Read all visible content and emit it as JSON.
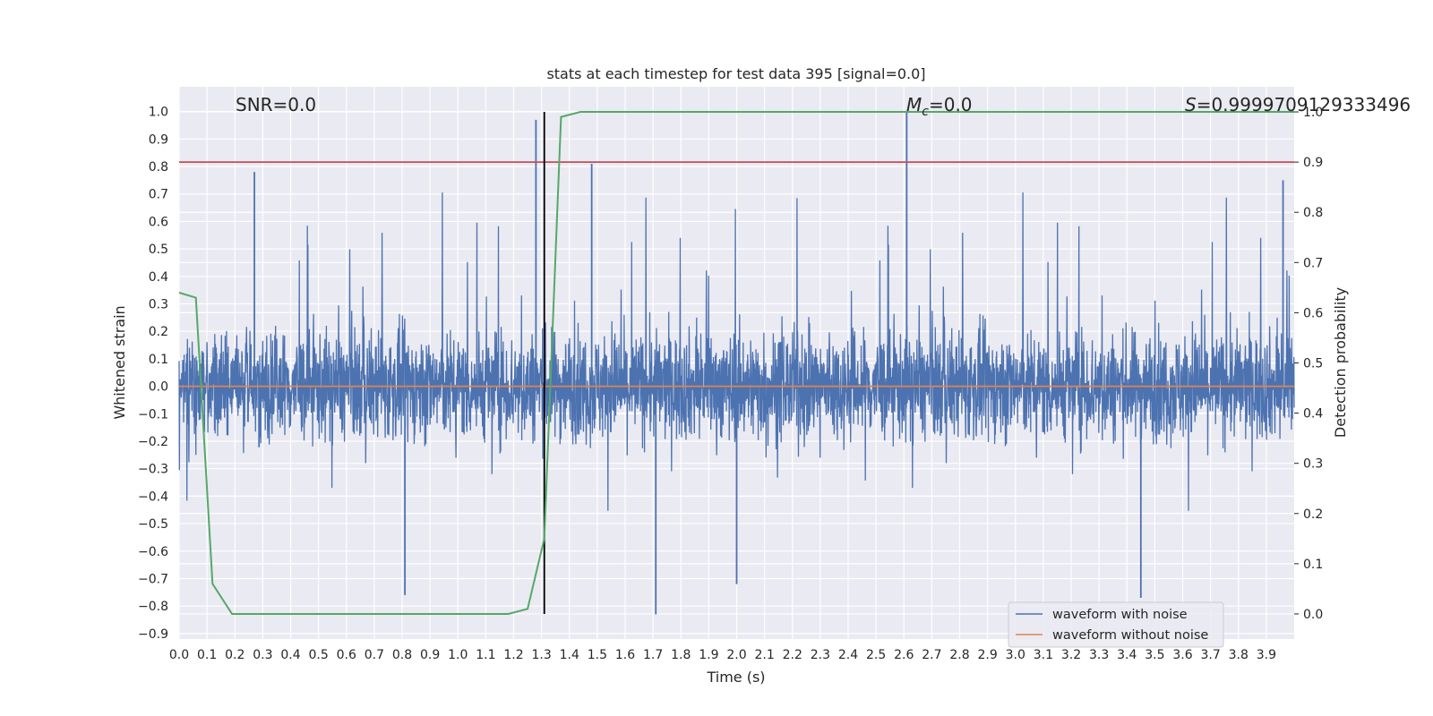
{
  "chart_data": {
    "type": "line",
    "title": "stats at each timestep for test data 395 [signal=0.0]",
    "xlabel": "Time (s)",
    "ylabel": "Whitened strain",
    "y2label": "Detection probability",
    "xlim": [
      0.0,
      4.0
    ],
    "ylim": [
      -0.92,
      1.09
    ],
    "y2lim": [
      -0.05,
      1.05
    ],
    "grid": true,
    "x_ticks": [
      "0.0",
      "0.1",
      "0.2",
      "0.3",
      "0.4",
      "0.5",
      "0.6",
      "0.7",
      "0.8",
      "0.9",
      "1.0",
      "1.1",
      "1.2",
      "1.3",
      "1.4",
      "1.5",
      "1.6",
      "1.7",
      "1.8",
      "1.9",
      "2.0",
      "2.1",
      "2.2",
      "2.3",
      "2.4",
      "2.5",
      "2.6",
      "2.7",
      "2.8",
      "2.9",
      "3.0",
      "3.1",
      "3.2",
      "3.3",
      "3.4",
      "3.5",
      "3.6",
      "3.7",
      "3.8",
      "3.9"
    ],
    "y_ticks": [
      "1.0",
      "0.9",
      "0.8",
      "0.7",
      "0.6",
      "0.5",
      "0.4",
      "0.3",
      "0.2",
      "0.1",
      "0.0",
      "−0.1",
      "−0.2",
      "−0.3",
      "−0.4",
      "−0.5",
      "−0.6",
      "−0.7",
      "−0.8",
      "−0.9"
    ],
    "y2_ticks": [
      "1.0",
      "0.9",
      "0.8",
      "0.7",
      "0.6",
      "0.5",
      "0.4",
      "0.3",
      "0.2",
      "0.1",
      "0.0"
    ],
    "annotations": {
      "snr": "SNR=0.0",
      "mc_symbol": "M",
      "mc_sub": "c",
      "mc_value": "=0.0",
      "s_symbol": "S",
      "s_value": "=0.9999709129333496"
    },
    "legend": {
      "placement": "lower-right",
      "entries": [
        "waveform with noise",
        "waveform without noise"
      ]
    },
    "colors": {
      "noise": "#4c72b0",
      "clean": "#dd8452",
      "probability": "#55a868",
      "threshold": "#c44e52",
      "marker": "#000000",
      "axes_bg": "#eaeaf2",
      "grid": "#ffffff"
    },
    "series": [
      {
        "name": "waveform with noise",
        "description": "whitened noisy strain, dense noise between about -0.83 and 1.0",
        "peaks": [
          {
            "x": 0.27,
            "y": 0.78
          },
          {
            "x": 1.28,
            "y": 0.97
          },
          {
            "x": 1.48,
            "y": 0.81
          },
          {
            "x": 2.61,
            "y": 1.0
          },
          {
            "x": 3.96,
            "y": 0.75
          },
          {
            "x": 1.71,
            "y": -0.83
          },
          {
            "x": 0.81,
            "y": -0.76
          },
          {
            "x": 3.45,
            "y": -0.77
          },
          {
            "x": 2.0,
            "y": -0.72
          }
        ]
      },
      {
        "name": "waveform without noise",
        "x": [
          0.0,
          4.0
        ],
        "y": [
          0.0,
          0.0
        ]
      },
      {
        "axis": "y2",
        "x": [
          0.0,
          0.06,
          0.12,
          0.19,
          0.5,
          1.0,
          1.18,
          1.25,
          1.31,
          1.37,
          1.44,
          2.0,
          3.0,
          4.0
        ],
        "y": [
          0.64,
          0.63,
          0.06,
          0.0,
          0.0,
          0.0,
          0.0,
          0.01,
          0.15,
          0.99,
          1.0,
          1.0,
          1.0,
          1.0
        ]
      }
    ],
    "threshold_y2": 0.9,
    "marker_x": 1.31
  }
}
